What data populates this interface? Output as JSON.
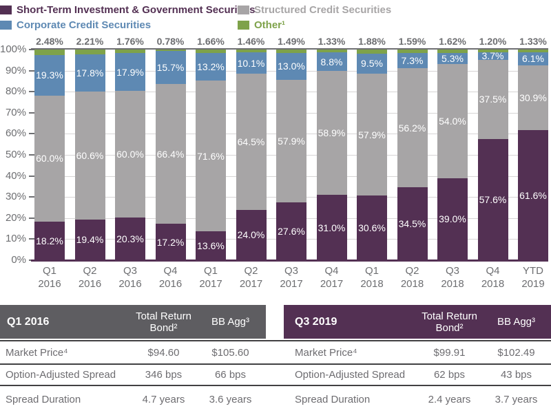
{
  "background": "#FFFFFF",
  "legend": {
    "items": [
      {
        "label": "Short-Term Investment & Government Securities",
        "color": "#533053"
      },
      {
        "label": "Corporate Credit Securities",
        "color": "#5E89B3"
      },
      {
        "label": "Structured Credit Securities",
        "color": "#A7A5A6"
      },
      {
        "label": "Other¹",
        "color": "#7EA24A"
      }
    ]
  },
  "chart_data": {
    "type": "bar",
    "stacked": true,
    "categories": [
      "Q1 2016",
      "Q2 2016",
      "Q3 2016",
      "Q4 2016",
      "Q1 2017",
      "Q2 2017",
      "Q3 2017",
      "Q4 2017",
      "Q1 2018",
      "Q2 2018",
      "Q3 2018",
      "Q4 2018",
      "YTD 2019"
    ],
    "y_ticks": [
      "100%",
      "90%",
      "80%",
      "70%",
      "60%",
      "50%",
      "40%",
      "30%",
      "20%",
      "10%",
      "0%"
    ],
    "ylim": [
      0,
      100
    ],
    "grid": "horizontal",
    "legend_position": "top",
    "axis_color": "#6D6E71",
    "gridline_color": "#D6D4D5",
    "series": [
      {
        "name": "Short-Term Investment & Government Securities",
        "color": "#533053",
        "label_position": "inside",
        "values": [
          18.2,
          19.4,
          20.3,
          17.2,
          13.6,
          24.0,
          27.6,
          31.0,
          30.6,
          34.5,
          39.0,
          57.6,
          61.6
        ],
        "labels": [
          "18.2%",
          "19.4%",
          "20.3%",
          "17.2%",
          "13.6%",
          "24.0%",
          "27.6%",
          "31.0%",
          "30.6%",
          "34.5%",
          "39.0%",
          "57.6%",
          "61.6%"
        ]
      },
      {
        "name": "Structured Credit Securities",
        "color": "#A7A5A6",
        "label_position": "inside",
        "values": [
          60.0,
          60.6,
          60.0,
          66.4,
          71.6,
          64.5,
          57.9,
          58.9,
          57.9,
          56.2,
          54.0,
          37.5,
          30.9
        ],
        "labels": [
          "60.0%",
          "60.6%",
          "60.0%",
          "66.4%",
          "71.6%",
          "64.5%",
          "57.9%",
          "58.9%",
          "57.9%",
          "56.2%",
          "54.0%",
          "37.5%",
          "30.9%"
        ]
      },
      {
        "name": "Corporate Credit Securities",
        "color": "#5E89B3",
        "label_position": "inside",
        "values": [
          19.3,
          17.8,
          17.9,
          15.7,
          13.2,
          10.1,
          13.0,
          8.8,
          9.5,
          7.3,
          5.3,
          3.7,
          6.1
        ],
        "labels": [
          "19.3%",
          "17.8%",
          "17.9%",
          "15.7%",
          "13.2%",
          "10.1%",
          "13.0%",
          "8.8%",
          "9.5%",
          "7.3%",
          "5.3%",
          "3.7%",
          "6.1%"
        ]
      },
      {
        "name": "Other¹",
        "color": "#7EA24A",
        "label_position": "above",
        "values": [
          2.48,
          2.21,
          1.76,
          0.78,
          1.66,
          1.46,
          1.49,
          1.33,
          1.88,
          1.59,
          1.62,
          1.2,
          1.33
        ],
        "labels": [
          "2.48%",
          "2.21%",
          "1.76%",
          "0.78%",
          "1.66%",
          "1.46%",
          "1.49%",
          "1.33%",
          "1.88%",
          "1.59%",
          "1.62%",
          "1.20%",
          "1.33%"
        ]
      }
    ]
  },
  "tables": [
    {
      "title": "Q1 2016",
      "header_color": "#5E5D61",
      "columns": [
        "Total Return Bond²",
        "BB Agg³"
      ],
      "rows": [
        {
          "label": "Market Price⁴",
          "values": [
            "$94.60",
            "$105.60"
          ]
        },
        {
          "label": "Option-Adjusted Spread",
          "values": [
            "346 bps",
            "66 bps"
          ]
        },
        {
          "label": "Spread Duration",
          "values": [
            "4.7 years",
            "3.6 years"
          ]
        }
      ]
    },
    {
      "title": "Q3 2019",
      "header_color": "#533053",
      "columns": [
        "Total Return Bond²",
        "BB Agg³"
      ],
      "rows": [
        {
          "label": "Market Price⁴",
          "values": [
            "$99.91",
            "$102.49"
          ]
        },
        {
          "label": "Option-Adjusted Spread",
          "values": [
            "62 bps",
            "43 bps"
          ]
        },
        {
          "label": "Spread Duration",
          "values": [
            "2.4 years",
            "3.7 years"
          ]
        }
      ]
    }
  ]
}
